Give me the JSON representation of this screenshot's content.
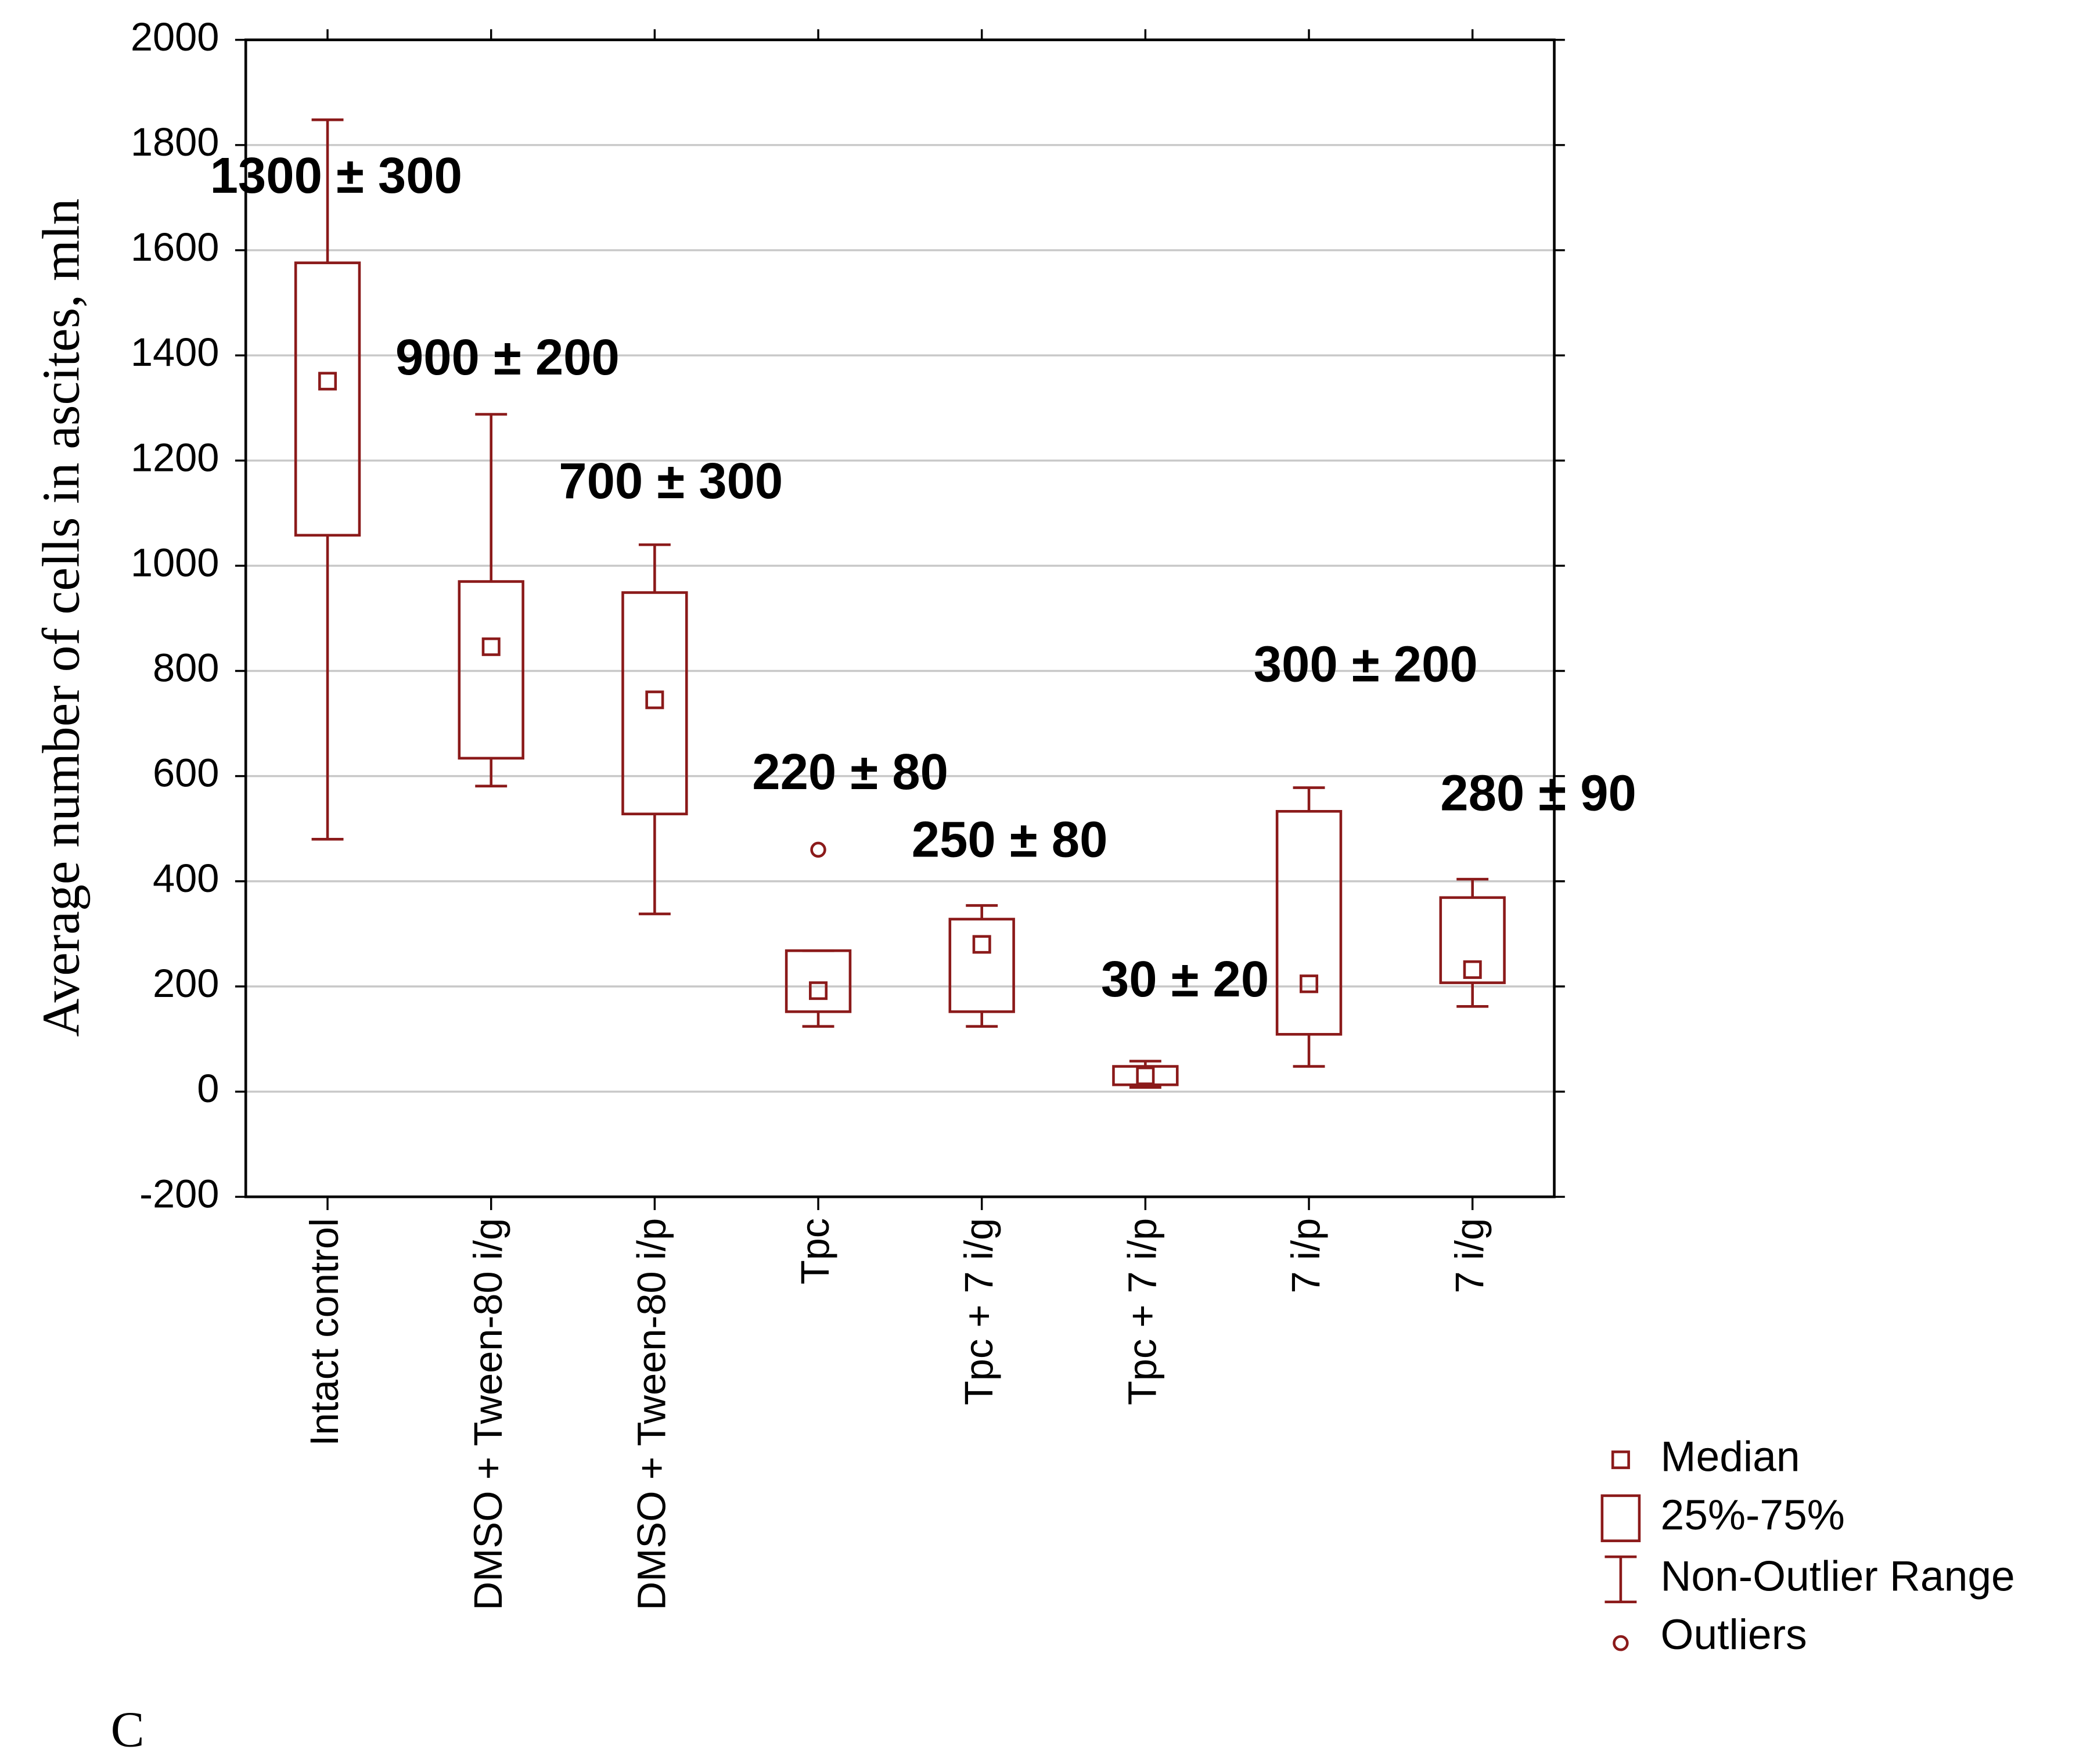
{
  "chart_data": {
    "type": "box",
    "y_label": "Average number of cells in ascites, mln",
    "panel_label": "C",
    "categories": [
      "Intact control",
      "DMSO + Tween-80 i/g",
      "DMSO + Tween-80 i/p",
      "Tpc",
      "Tpc + 7 i/g",
      "Tpc + 7 i/p",
      "7 i/p",
      "7 i/g"
    ],
    "whisker_high": [
      1848,
      1288,
      1040,
      268,
      354,
      58,
      578,
      404
    ],
    "q3": [
      1576,
      970,
      949,
      268,
      328,
      48,
      533,
      369
    ],
    "median": [
      1351,
      846,
      745,
      192,
      280,
      30,
      205,
      232
    ],
    "q1": [
      1058,
      634,
      528,
      152,
      152,
      13,
      109,
      207
    ],
    "whisker_low": [
      480,
      581,
      338,
      124,
      124,
      8,
      48,
      162
    ],
    "outliers": [
      [],
      [],
      [],
      [
        460
      ],
      [],
      [],
      [],
      []
    ],
    "annotations": [
      "1300 ± 300",
      "900 ± 200",
      "700 ± 300",
      "220 ± 80",
      "250 ± 80",
      "30 ± 20",
      "300 ± 200",
      "280 ± 90"
    ],
    "legend": [
      "Median",
      "25%-75%",
      "Non-Outlier Range",
      "Outliers"
    ],
    "color": "#8b1a1a",
    "ylim": [
      -200,
      2000
    ],
    "yticks": [
      -200,
      0,
      200,
      400,
      600,
      800,
      1000,
      1200,
      1400,
      1600,
      1800,
      2000
    ],
    "grid": true
  }
}
